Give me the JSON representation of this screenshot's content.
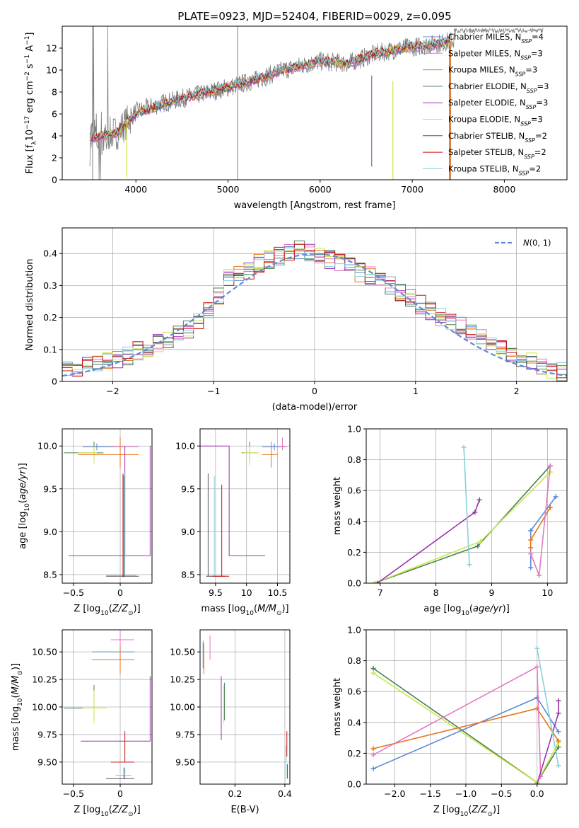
{
  "chart_data": [
    {
      "id": "spectrum",
      "type": "line",
      "title": "PLATE=0923, MJD=52404, FIBERID=0029, z=0.095",
      "xlabel": "wavelength [Angstrom, rest frame]",
      "ylabel": "Flux [f$_\\lambda$10$^{-17}$ erg cm$^{-2}$ s$^{-1}$ A$^{-1}$]",
      "ylabel_parts": [
        "Flux [f",
        "λ",
        "10",
        "−17",
        " erg cm",
        "−2",
        " s",
        "−1",
        " A",
        "−1",
        "]"
      ],
      "xlim": [
        3200,
        8680
      ],
      "ylim": [
        0,
        14
      ],
      "xticks": [
        4000,
        5000,
        6000,
        7000,
        8000
      ],
      "yticks": [
        0,
        2,
        4,
        6,
        8,
        10,
        12
      ],
      "grid": false,
      "legend_position": "top-right",
      "legend": [
        {
          "label": "Chabrier MILES, N",
          "sub": "SSP",
          "suffix": "=4",
          "color": "#5b8bd6"
        },
        {
          "label": "Salpeter MILES, N",
          "sub": "SSP",
          "suffix": "=3",
          "color": "#e377c2"
        },
        {
          "label": "Kroupa MILES, N",
          "sub": "SSP",
          "suffix": "=3",
          "color": "#e8731a"
        },
        {
          "label": "Chabrier ELODIE, N",
          "sub": "SSP",
          "suffix": "=3",
          "color": "#4a7f50"
        },
        {
          "label": "Salpeter ELODIE, N",
          "sub": "SSP",
          "suffix": "=3",
          "color": "#9933aa"
        },
        {
          "label": "Kroupa ELODIE, N",
          "sub": "SSP",
          "suffix": "=3",
          "color": "#c8e84a"
        },
        {
          "label": "Chabrier STELIB, N",
          "sub": "SSP",
          "suffix": "=2",
          "color": "#555555"
        },
        {
          "label": "Salpeter STELIB, N",
          "sub": "SSP",
          "suffix": "=2",
          "color": "#cc1111"
        },
        {
          "label": "Kroupa STELIB, N",
          "sub": "SSP",
          "suffix": "=2",
          "color": "#88d0dd"
        }
      ],
      "observed_continuum": {
        "x": [
          3500,
          3800,
          4000,
          4300,
          4600,
          5000,
          5300,
          5600,
          6000,
          6300,
          6600,
          6900,
          7200,
          7400,
          7600,
          7900,
          8200,
          8400
        ],
        "y": [
          3.8,
          4.3,
          6.2,
          7.0,
          7.6,
          8.4,
          9.1,
          10.0,
          10.8,
          10.6,
          11.5,
          12.0,
          12.3,
          12.6,
          13.0,
          13.4,
          13.6,
          13.8
        ]
      },
      "model_continuum": {
        "x": [
          3500,
          3800,
          4000,
          4300,
          4600,
          5000,
          5300,
          5600,
          6000,
          6300,
          6600,
          6900,
          7200,
          7420
        ],
        "y": [
          3.8,
          4.3,
          6.0,
          6.9,
          7.6,
          8.4,
          9.1,
          10.0,
          10.8,
          10.6,
          11.5,
          12.0,
          12.3,
          12.6
        ]
      }
    },
    {
      "id": "residuals",
      "type": "step",
      "ylabel": "Normed distribution",
      "xlabel": "(data-model)/error",
      "xlim": [
        -2.5,
        2.5
      ],
      "ylim": [
        0,
        0.48
      ],
      "xticks": [
        -2,
        -1,
        0,
        1,
        2
      ],
      "yticks": [
        0.0,
        0.1,
        0.2,
        0.3,
        0.4
      ],
      "grid": true,
      "legend_position": "top-right",
      "normal_curve_label": "N(0,1)",
      "normal_curve_color": "#5b8bd6",
      "bin_width": 0.1,
      "bin_start": -2.5,
      "base_hist": [
        0.04,
        0.045,
        0.05,
        0.055,
        0.06,
        0.07,
        0.08,
        0.095,
        0.105,
        0.12,
        0.13,
        0.145,
        0.16,
        0.19,
        0.22,
        0.27,
        0.32,
        0.33,
        0.35,
        0.37,
        0.38,
        0.39,
        0.4,
        0.41,
        0.4,
        0.39,
        0.38,
        0.37,
        0.36,
        0.34,
        0.33,
        0.32,
        0.3,
        0.28,
        0.26,
        0.24,
        0.22,
        0.2,
        0.19,
        0.175,
        0.16,
        0.14,
        0.12,
        0.1,
        0.09,
        0.075,
        0.06,
        0.05,
        0.04,
        0.03
      ]
    },
    {
      "id": "age-vs-Z",
      "type": "errorbar",
      "xlabel": "Z [log$_{10}$(Z/Z$_\\odot$)]",
      "xlabel_parts": [
        "Z [log",
        "10",
        "(",
        "Z/Z",
        "⊙",
        ")]"
      ],
      "ylabel": "age  [log$_{10}$(age/yr)]",
      "ylabel_parts": [
        "age  [log",
        "10",
        "(",
        "age/yr",
        ")]"
      ],
      "xlim": [
        -0.62,
        0.34
      ],
      "ylim": [
        8.4,
        10.2
      ],
      "xticks": [
        -0.5,
        0.0
      ],
      "ytick_labels": [
        "8.5",
        "9.0",
        "9.5",
        "10.0"
      ],
      "yticks": [
        8.5,
        9.0,
        9.5,
        10.0
      ],
      "grid": true
    },
    {
      "id": "age-vs-mass",
      "type": "errorbar",
      "xlabel": "mass [log$_{10}$(M/M$_\\odot$)]",
      "xlabel_parts": [
        "mass [log",
        "10",
        "(",
        "M/M",
        "⊙",
        ")]"
      ],
      "xlim": [
        9.25,
        10.7
      ],
      "ylim": [
        8.4,
        10.2
      ],
      "xticks": [
        9.5,
        10.0,
        10.5
      ],
      "yticks": [
        8.5,
        9.0,
        9.5,
        10.0
      ],
      "ytick_labels": [
        "8.5",
        "9.0",
        "9.5",
        "10.0"
      ],
      "grid": true
    },
    {
      "id": "weight-vs-age",
      "type": "line",
      "xlabel": "age  [log$_{10}$(age/yr)]",
      "xlabel_parts": [
        "age  [log",
        "10",
        "(",
        "age/yr",
        ")]"
      ],
      "ylabel": "mass weight",
      "xlim": [
        6.75,
        10.35
      ],
      "ylim": [
        0.0,
        1.0
      ],
      "xticks": [
        7,
        8,
        9,
        10
      ],
      "yticks": [
        0.0,
        0.2,
        0.4,
        0.6,
        0.8,
        1.0
      ],
      "ytick_labels": [
        "0.0",
        "0.2",
        "0.4",
        "0.6",
        "0.8",
        "1.0"
      ],
      "grid": true,
      "series": [
        {
          "color": "#4a7f50",
          "x": [
            6.9,
            8.75,
            10.05
          ],
          "y": [
            0.0,
            0.24,
            0.76
          ]
        },
        {
          "color": "#c8e84a",
          "x": [
            6.9,
            8.8,
            10.05
          ],
          "y": [
            0.0,
            0.27,
            0.72
          ]
        },
        {
          "color": "#9933aa",
          "x": [
            6.95,
            8.7,
            8.78
          ],
          "y": [
            0.0,
            0.46,
            0.54
          ]
        },
        {
          "color": "#88d0dd",
          "x": [
            8.5,
            8.6
          ],
          "y": [
            0.88,
            0.12
          ]
        },
        {
          "color": "#5b8bd6",
          "x": [
            9.7,
            9.7,
            10.15
          ],
          "y": [
            0.1,
            0.34,
            0.56
          ]
        },
        {
          "color": "#e8731a",
          "x": [
            9.7,
            9.7,
            10.05
          ],
          "y": [
            0.23,
            0.28,
            0.49
          ]
        },
        {
          "color": "#e377c2",
          "x": [
            9.7,
            9.85,
            10.05
          ],
          "y": [
            0.19,
            0.05,
            0.76
          ]
        }
      ]
    },
    {
      "id": "mass-vs-Z",
      "type": "errorbar",
      "xlabel": "Z [log$_{10}$(Z/Z$_\\odot$)]",
      "xlabel_parts": [
        "Z [log",
        "10",
        "(",
        "Z/Z",
        "⊙",
        ")]"
      ],
      "ylabel": "mass [log$_{10}$(M/M$_\\odot$)]",
      "ylabel_parts": [
        "mass [log",
        "10",
        "(",
        "M/M",
        "⊙",
        ")]"
      ],
      "xlim": [
        -0.62,
        0.34
      ],
      "ylim": [
        9.3,
        10.7
      ],
      "xticks": [
        -0.5,
        0.0
      ],
      "yticks": [
        9.5,
        9.75,
        10.0,
        10.25,
        10.5
      ],
      "ytick_labels": [
        "9.50",
        "9.75",
        "10.00",
        "10.25",
        "10.50"
      ],
      "grid": true
    },
    {
      "id": "mass-vs-EBV",
      "type": "errorbar",
      "xlabel": "E(B-V)",
      "xlim": [
        0.06,
        0.42
      ],
      "ylim": [
        9.3,
        10.7
      ],
      "xticks": [
        0.2,
        0.4
      ],
      "xtick_labels": [
        "0.2",
        "0.4"
      ],
      "yticks": [
        9.5,
        9.75,
        10.0,
        10.25,
        10.5
      ],
      "ytick_labels": [
        "9.50",
        "9.75",
        "10.00",
        "10.25",
        "10.50"
      ],
      "grid": true
    },
    {
      "id": "weight-vs-Z",
      "type": "line",
      "xlabel": "Z [log$_{10}$(Z/Z$_\\odot$)]",
      "xlabel_parts": [
        "Z [log",
        "10",
        "(",
        "Z/Z",
        "⊙",
        ")]"
      ],
      "ylabel": "mass weight",
      "xlim": [
        -2.4,
        0.42
      ],
      "ylim": [
        0.0,
        1.0
      ],
      "xticks": [
        -2.0,
        -1.5,
        -1.0,
        -0.5,
        0.0
      ],
      "xtick_labels": [
        "−2.0",
        "−1.5",
        "−1.0",
        "−0.5",
        "0.0"
      ],
      "yticks": [
        0.0,
        0.2,
        0.4,
        0.6,
        0.8,
        1.0
      ],
      "ytick_labels": [
        "0.0",
        "0.2",
        "0.4",
        "0.6",
        "0.8",
        "1.0"
      ],
      "grid": true,
      "series": [
        {
          "color": "#4a7f50",
          "x": [
            -2.3,
            0.0,
            0.3
          ],
          "y": [
            0.75,
            0.01,
            0.24
          ]
        },
        {
          "color": "#c8e84a",
          "x": [
            -2.3,
            0.0,
            0.3
          ],
          "y": [
            0.72,
            0.01,
            0.27
          ]
        },
        {
          "color": "#5b8bd6",
          "x": [
            -2.3,
            0.0,
            0.3
          ],
          "y": [
            0.1,
            0.56,
            0.34
          ]
        },
        {
          "color": "#e8731a",
          "x": [
            -2.3,
            0.0,
            0.3
          ],
          "y": [
            0.23,
            0.49,
            0.28
          ]
        },
        {
          "color": "#e377c2",
          "x": [
            -2.3,
            0.0,
            0.05
          ],
          "y": [
            0.19,
            0.76,
            0.05
          ]
        },
        {
          "color": "#9933aa",
          "x": [
            0.0,
            0.3,
            0.3
          ],
          "y": [
            0.0,
            0.46,
            0.54
          ]
        },
        {
          "color": "#88d0dd",
          "x": [
            0.0,
            0.3
          ],
          "y": [
            0.88,
            0.12
          ]
        }
      ]
    }
  ]
}
